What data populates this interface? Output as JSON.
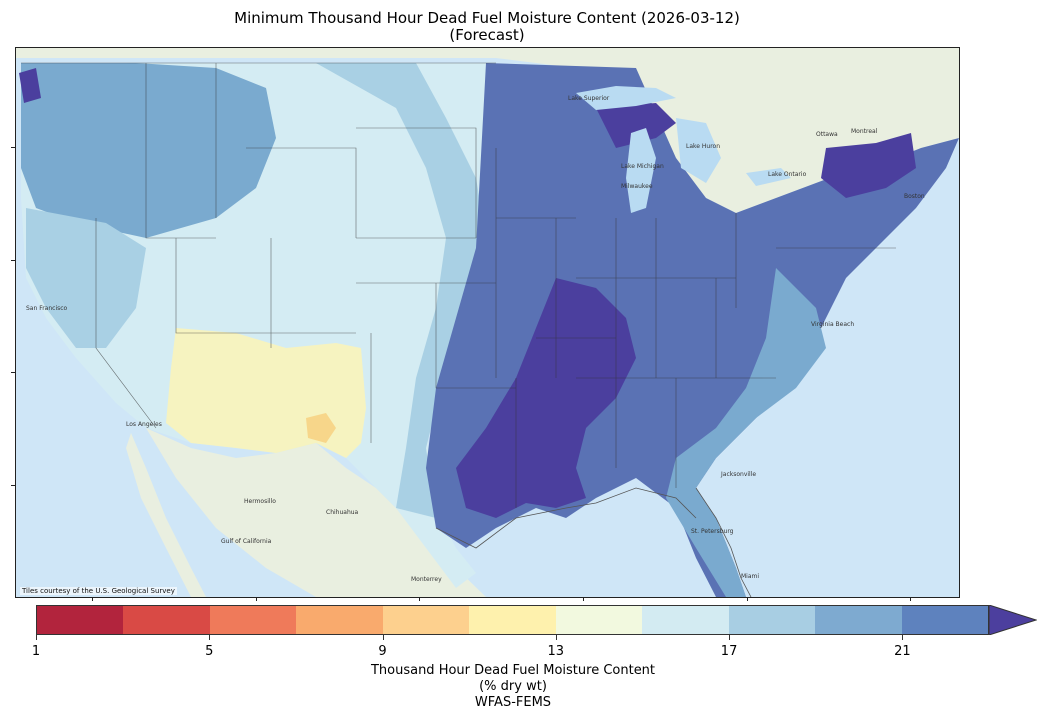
{
  "title": {
    "line1": "Minimum Thousand Hour Dead Fuel Moisture Content (2026-03-12)",
    "line2": "(Forecast)"
  },
  "map": {
    "credit": "Tiles courtesy of the U.S. Geological Survey",
    "place_labels": [
      "Lake Superior",
      "Lake Michigan",
      "Lake Huron",
      "Lake Ontario",
      "Milwaukee",
      "Ottawa",
      "Montreal",
      "Boston",
      "San Francisco",
      "Los Angeles",
      "Hermosillo",
      "Chihuahua",
      "Monterrey",
      "Gulf of California",
      "Virginia Beach",
      "Jacksonville",
      "St. Petersburg",
      "Miami"
    ],
    "colors": {
      "ocean": "#cfe6f7",
      "land": "#e9efe0",
      "very_wet": "#4b3f9e",
      "wet": "#5a72b4",
      "moist": "#7aaacf",
      "light": "#a9d0e4",
      "pale": "#d4ecf3",
      "dry_pale": "#f0f6dc",
      "dry": "#f6f3c0",
      "driest": "#f7d68a"
    }
  },
  "colorbar": {
    "title_line1": "Thousand Hour Dead Fuel Moisture Content",
    "title_line2": "(% dry wt)",
    "source": "WFAS-FEMS",
    "ticks": [
      "1",
      "5",
      "9",
      "13",
      "17",
      "21"
    ],
    "min": 1,
    "max": 23,
    "extend": "max",
    "colors": [
      "#b2243d",
      "#d94a45",
      "#ef7a5a",
      "#f9aa6d",
      "#fdd08e",
      "#fef1ad",
      "#f2f9df",
      "#d3ebf2",
      "#a8cee3",
      "#7eaad0",
      "#5e82be"
    ],
    "extend_color": "#4c3f9e"
  }
}
